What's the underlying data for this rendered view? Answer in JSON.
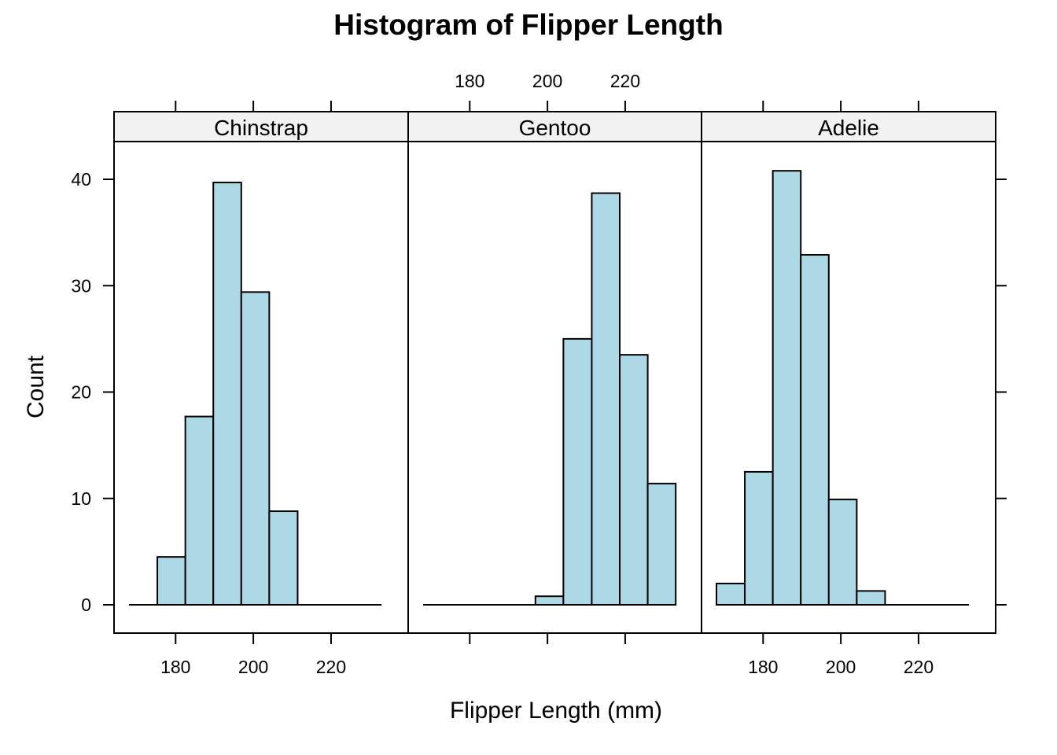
{
  "chart_data": {
    "type": "bar",
    "title": "Histogram of Flipper Length",
    "xlabel": "Flipper Length (mm)",
    "ylabel": "Count",
    "xlim": [
      168,
      236
    ],
    "ylim": [
      -3,
      44
    ],
    "x_ticks": [
      180,
      200,
      220
    ],
    "y_ticks": [
      0,
      10,
      20,
      30,
      40
    ],
    "bar_fill": "#ADD8E6",
    "strip_fill": "#F2F2F2",
    "grid": false,
    "bin_edges": [
      168,
      175.3,
      182.5,
      189.7,
      196.9,
      204.1,
      211.4,
      218.6,
      225.8,
      233
    ],
    "panels": [
      {
        "name": "Chinstrap",
        "values": [
          0,
          4.5,
          17.7,
          39.7,
          29.4,
          8.8,
          0,
          0,
          0
        ]
      },
      {
        "name": "Gentoo",
        "values": [
          0,
          0,
          0,
          0,
          0.8,
          25.0,
          38.7,
          23.5,
          11.4
        ]
      },
      {
        "name": "Adelie",
        "values": [
          2.0,
          12.5,
          40.8,
          32.9,
          9.9,
          1.3,
          0,
          0,
          0
        ]
      }
    ]
  }
}
